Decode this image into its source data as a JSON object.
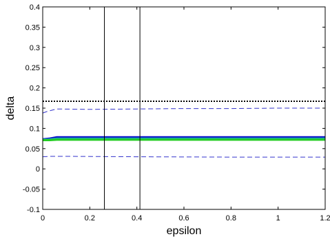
{
  "chart_data": {
    "type": "line",
    "title": "",
    "xlabel": "epsilon",
    "ylabel": "delta",
    "xlim": [
      0,
      1.2
    ],
    "ylim": [
      -0.1,
      0.4
    ],
    "xticks": [
      "0",
      "0.2",
      "0.4",
      "0.6",
      "0.8",
      "1",
      "1.2"
    ],
    "yticks": [
      "-0.1",
      "-0.05",
      "0",
      "0.05",
      "0.1",
      "0.15",
      "0.2",
      "0.25",
      "0.3",
      "0.35",
      "0.4"
    ],
    "grid": false,
    "legend": "none",
    "vertical_lines": [
      0.262,
      0.413
    ],
    "series": [
      {
        "style": "dotted",
        "color": "#000000",
        "x": [
          0,
          1.2
        ],
        "y": [
          0.167,
          0.167
        ]
      },
      {
        "style": "dashed",
        "color": "#3333cc",
        "x": [
          0,
          0.02,
          0.06,
          0.2,
          0.4,
          0.6,
          0.8,
          1.0,
          1.2
        ],
        "y": [
          0.138,
          0.142,
          0.148,
          0.147,
          0.148,
          0.149,
          0.149,
          0.15,
          0.15
        ]
      },
      {
        "style": "dashed",
        "color": "#3333cc",
        "x": [
          0,
          0.03,
          0.1,
          0.4,
          0.8,
          1.2
        ],
        "y": [
          0.03,
          0.031,
          0.031,
          0.03,
          0.029,
          0.029
        ]
      },
      {
        "style": "thick",
        "color": "#0000cc",
        "x": [
          0,
          0.03,
          0.06,
          1.2
        ],
        "y": [
          0.073,
          0.075,
          0.078,
          0.078
        ]
      },
      {
        "style": "thick",
        "color": "#1fa7a7",
        "x": [
          0,
          0.03,
          0.06,
          1.2
        ],
        "y": [
          0.072,
          0.073,
          0.075,
          0.075
        ]
      },
      {
        "style": "thick",
        "color": "#22cc22",
        "x": [
          0,
          0.03,
          0.06,
          1.2
        ],
        "y": [
          0.071,
          0.071,
          0.072,
          0.072
        ]
      }
    ]
  }
}
